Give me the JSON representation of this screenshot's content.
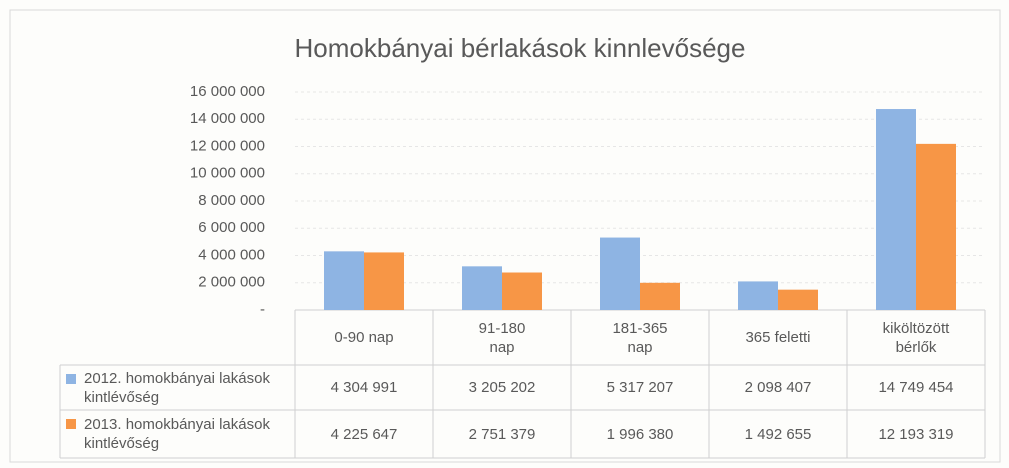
{
  "chart_data": {
    "type": "bar",
    "title": "Homokbányai bérlakások kinnlevősége",
    "categories": [
      "0-90 nap",
      "91-180 nap",
      "181-365 nap",
      "365 feletti",
      "kiköltözött bérlők"
    ],
    "series": [
      {
        "name": "2012. homokbányai lakások kintlévőség",
        "color": "#8eb4e3",
        "values": [
          4304991,
          3205202,
          5317207,
          2098407,
          14749454
        ],
        "value_labels": [
          "4 304 991",
          "3 205 202",
          "5 317 207",
          "2 098 407",
          "14 749 454"
        ]
      },
      {
        "name": "2013. homokbányai lakások kintlévőség",
        "color": "#f79646",
        "values": [
          4225647,
          2751379,
          1996380,
          1492655,
          12193319
        ],
        "value_labels": [
          "4 225 647",
          "2 751 379",
          "1 996 380",
          "1 492 655",
          "12 193 319"
        ]
      }
    ],
    "ylim": [
      0,
      16000000
    ],
    "yticks": [
      {
        "value": 0,
        "label": "-"
      },
      {
        "value": 2000000,
        "label": "2 000 000"
      },
      {
        "value": 4000000,
        "label": "4 000 000"
      },
      {
        "value": 6000000,
        "label": "6 000 000"
      },
      {
        "value": 8000000,
        "label": "8 000 000"
      },
      {
        "value": 10000000,
        "label": "10 000 000"
      },
      {
        "value": 12000000,
        "label": "12 000 000"
      },
      {
        "value": 14000000,
        "label": "14 000 000"
      },
      {
        "value": 16000000,
        "label": "16 000 000"
      }
    ],
    "grid": true
  }
}
